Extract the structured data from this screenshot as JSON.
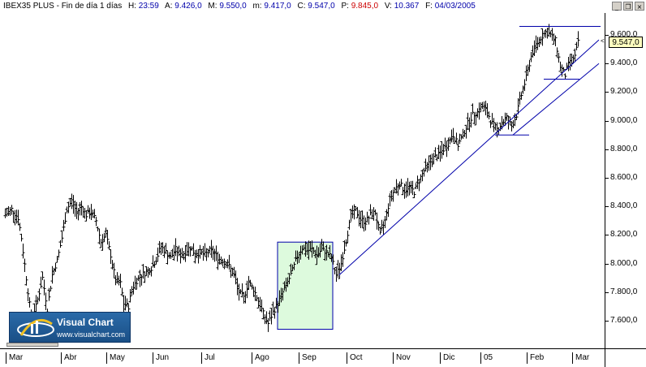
{
  "header": {
    "symbol": "IBEX35 PLUS - Fin de día 1 días",
    "h_label": "H:",
    "h_value": "23:59",
    "a_label": "A:",
    "a_value": "9.426,0",
    "m_label": "M:",
    "m_value": "9.550,0",
    "lo_label": "m:",
    "lo_value": "9.417,0",
    "c_label": "C:",
    "c_value": "9.547,0",
    "p_label": "P:",
    "p_value": "9.845,0",
    "v_label": "V:",
    "v_value": "10.367",
    "f_label": "F:",
    "f_value": "04/03/2005"
  },
  "window_controls": {
    "minimize": "_",
    "restore": "❐",
    "close": "×"
  },
  "price_axis": {
    "labels": [
      "9.600,0",
      "9.400,0",
      "9.200,0",
      "9.000,0",
      "8.800,0",
      "8.600,0",
      "8.400,0",
      "8.200,0",
      "8.000,0",
      "7.800,0",
      "7.600,0"
    ],
    "last_price": "9.547,0"
  },
  "time_axis": {
    "months": [
      "Mar",
      "Abr",
      "May",
      "Jun",
      "Jul",
      "Ago",
      "Sep",
      "Oct",
      "Nov",
      "Dic",
      "05",
      "Feb",
      "Mar"
    ]
  },
  "logo": {
    "title": "Visual Chart",
    "url": "www.visualchart.com"
  },
  "colors": {
    "bars": "#000000",
    "trendlines": "#0000aa",
    "highlight_fill": "#ddfadd",
    "price_tag": "#ffffc0"
  },
  "chart_data": {
    "type": "ohlc",
    "ylim": [
      7420,
      9680
    ],
    "last": 9547,
    "points": [
      [
        0,
        8200
      ],
      [
        6,
        8340
      ],
      [
        14,
        8380
      ],
      [
        22,
        8320
      ],
      [
        26,
        8180
      ],
      [
        32,
        7900
      ],
      [
        38,
        7620
      ],
      [
        44,
        7700
      ],
      [
        52,
        7900
      ],
      [
        58,
        7680
      ],
      [
        64,
        7920
      ],
      [
        70,
        8020
      ],
      [
        76,
        8180
      ],
      [
        82,
        8380
      ],
      [
        88,
        8440
      ],
      [
        94,
        8360
      ],
      [
        100,
        8400
      ],
      [
        106,
        8340
      ],
      [
        112,
        8360
      ],
      [
        118,
        8300
      ],
      [
        124,
        8150
      ],
      [
        130,
        8200
      ],
      [
        136,
        8060
      ],
      [
        142,
        7880
      ],
      [
        148,
        7860
      ],
      [
        152,
        7720
      ],
      [
        158,
        7700
      ],
      [
        162,
        7820
      ],
      [
        168,
        7880
      ],
      [
        174,
        7920
      ],
      [
        180,
        7940
      ],
      [
        186,
        7970
      ],
      [
        192,
        8030
      ],
      [
        198,
        8120
      ],
      [
        204,
        8080
      ],
      [
        210,
        8040
      ],
      [
        216,
        8100
      ],
      [
        222,
        8060
      ],
      [
        228,
        8080
      ],
      [
        234,
        8120
      ],
      [
        240,
        8060
      ],
      [
        246,
        8080
      ],
      [
        252,
        8060
      ],
      [
        258,
        8090
      ],
      [
        264,
        8070
      ],
      [
        270,
        8030
      ],
      [
        276,
        8020
      ],
      [
        282,
        7980
      ],
      [
        288,
        7920
      ],
      [
        294,
        7800
      ],
      [
        300,
        7760
      ],
      [
        306,
        7870
      ],
      [
        312,
        7820
      ],
      [
        318,
        7740
      ],
      [
        324,
        7650
      ],
      [
        330,
        7580
      ],
      [
        336,
        7660
      ],
      [
        342,
        7720
      ],
      [
        348,
        7800
      ],
      [
        354,
        7870
      ],
      [
        360,
        7950
      ],
      [
        366,
        8050
      ],
      [
        372,
        8110
      ],
      [
        378,
        8090
      ],
      [
        384,
        8100
      ],
      [
        390,
        8060
      ],
      [
        396,
        8100
      ],
      [
        402,
        8080
      ],
      [
        408,
        8040
      ],
      [
        414,
        7920
      ],
      [
        420,
        8000
      ],
      [
        426,
        8160
      ],
      [
        432,
        8330
      ],
      [
        438,
        8370
      ],
      [
        444,
        8310
      ],
      [
        450,
        8290
      ],
      [
        456,
        8340
      ],
      [
        462,
        8360
      ],
      [
        468,
        8200
      ],
      [
        474,
        8300
      ],
      [
        480,
        8450
      ],
      [
        486,
        8520
      ],
      [
        492,
        8560
      ],
      [
        498,
        8510
      ],
      [
        504,
        8540
      ],
      [
        510,
        8500
      ],
      [
        516,
        8580
      ],
      [
        522,
        8650
      ],
      [
        528,
        8700
      ],
      [
        534,
        8740
      ],
      [
        540,
        8760
      ],
      [
        546,
        8800
      ],
      [
        552,
        8840
      ],
      [
        558,
        8900
      ],
      [
        564,
        8830
      ],
      [
        570,
        8900
      ],
      [
        576,
        8980
      ],
      [
        582,
        9040
      ],
      [
        588,
        9060
      ],
      [
        594,
        9100
      ],
      [
        600,
        9060
      ],
      [
        606,
        8980
      ],
      [
        612,
        8940
      ],
      [
        618,
        8980
      ],
      [
        624,
        9020
      ],
      [
        630,
        8960
      ],
      [
        636,
        9040
      ],
      [
        642,
        9180
      ],
      [
        648,
        9300
      ],
      [
        654,
        9450
      ],
      [
        660,
        9530
      ],
      [
        666,
        9580
      ],
      [
        672,
        9620
      ],
      [
        678,
        9600
      ],
      [
        684,
        9560
      ],
      [
        690,
        9380
      ],
      [
        696,
        9320
      ],
      [
        702,
        9420
      ],
      [
        708,
        9450
      ],
      [
        712,
        9547
      ]
    ],
    "trendlines": [
      {
        "from": [
          418,
          7920
        ],
        "to": [
          738,
          9565
        ]
      },
      {
        "from": [
          632,
          8900
        ],
        "to": [
          738,
          9400
        ]
      },
      {
        "from": [
          640,
          9660
        ],
        "to": [
          740,
          9660
        ]
      },
      {
        "from": [
          610,
          8900
        ],
        "to": [
          652,
          8900
        ]
      },
      {
        "from": [
          670,
          9290
        ],
        "to": [
          714,
          9290
        ]
      }
    ],
    "highlight_box": {
      "x0": 342,
      "x1": 410,
      "y0": 7540,
      "y1": 8150
    }
  }
}
